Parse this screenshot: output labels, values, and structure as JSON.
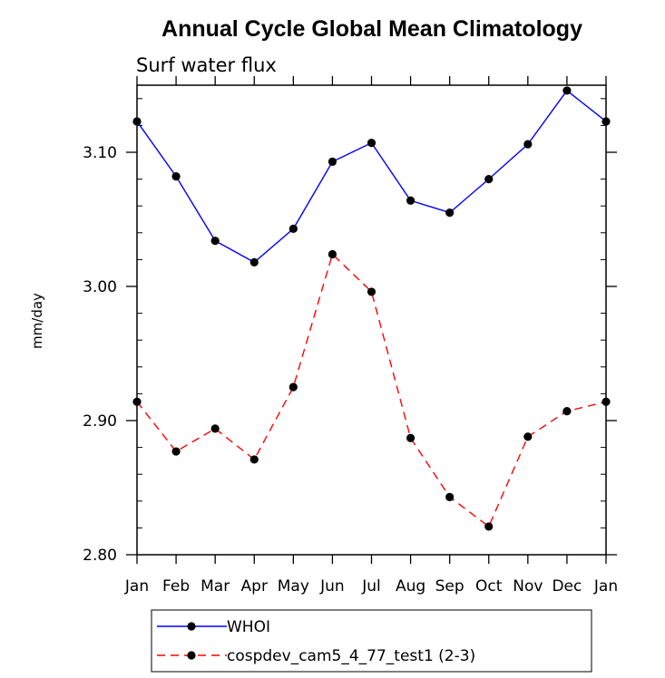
{
  "chart_data": {
    "type": "line",
    "title": "Annual Cycle Global Mean Climatology",
    "subtitle": "Surf water flux",
    "xlabel": "",
    "ylabel": "mm/day",
    "categories": [
      "Jan",
      "Feb",
      "Mar",
      "Apr",
      "May",
      "Jun",
      "Jul",
      "Aug",
      "Sep",
      "Oct",
      "Nov",
      "Dec",
      "Jan"
    ],
    "ylim": [
      2.8,
      3.15
    ],
    "yticks": [
      2.8,
      2.9,
      3.0,
      3.1
    ],
    "ytick_labels": [
      "2.80",
      "2.90",
      "3.00",
      "3.10"
    ],
    "grid": false,
    "legend_position": "bottom",
    "series": [
      {
        "name": "WHOI",
        "color": "#0000ff",
        "dash": "solid",
        "values": [
          3.123,
          3.082,
          3.034,
          3.018,
          3.043,
          3.093,
          3.107,
          3.064,
          3.055,
          3.08,
          3.106,
          3.146,
          3.123
        ]
      },
      {
        "name": "cospdev_cam5_4_77_test1 (2-3)",
        "color": "#ff0000",
        "dash": "dashed",
        "values": [
          2.914,
          2.877,
          2.894,
          2.871,
          2.925,
          3.024,
          2.996,
          2.887,
          2.843,
          2.821,
          2.888,
          2.907,
          2.914
        ]
      }
    ]
  }
}
